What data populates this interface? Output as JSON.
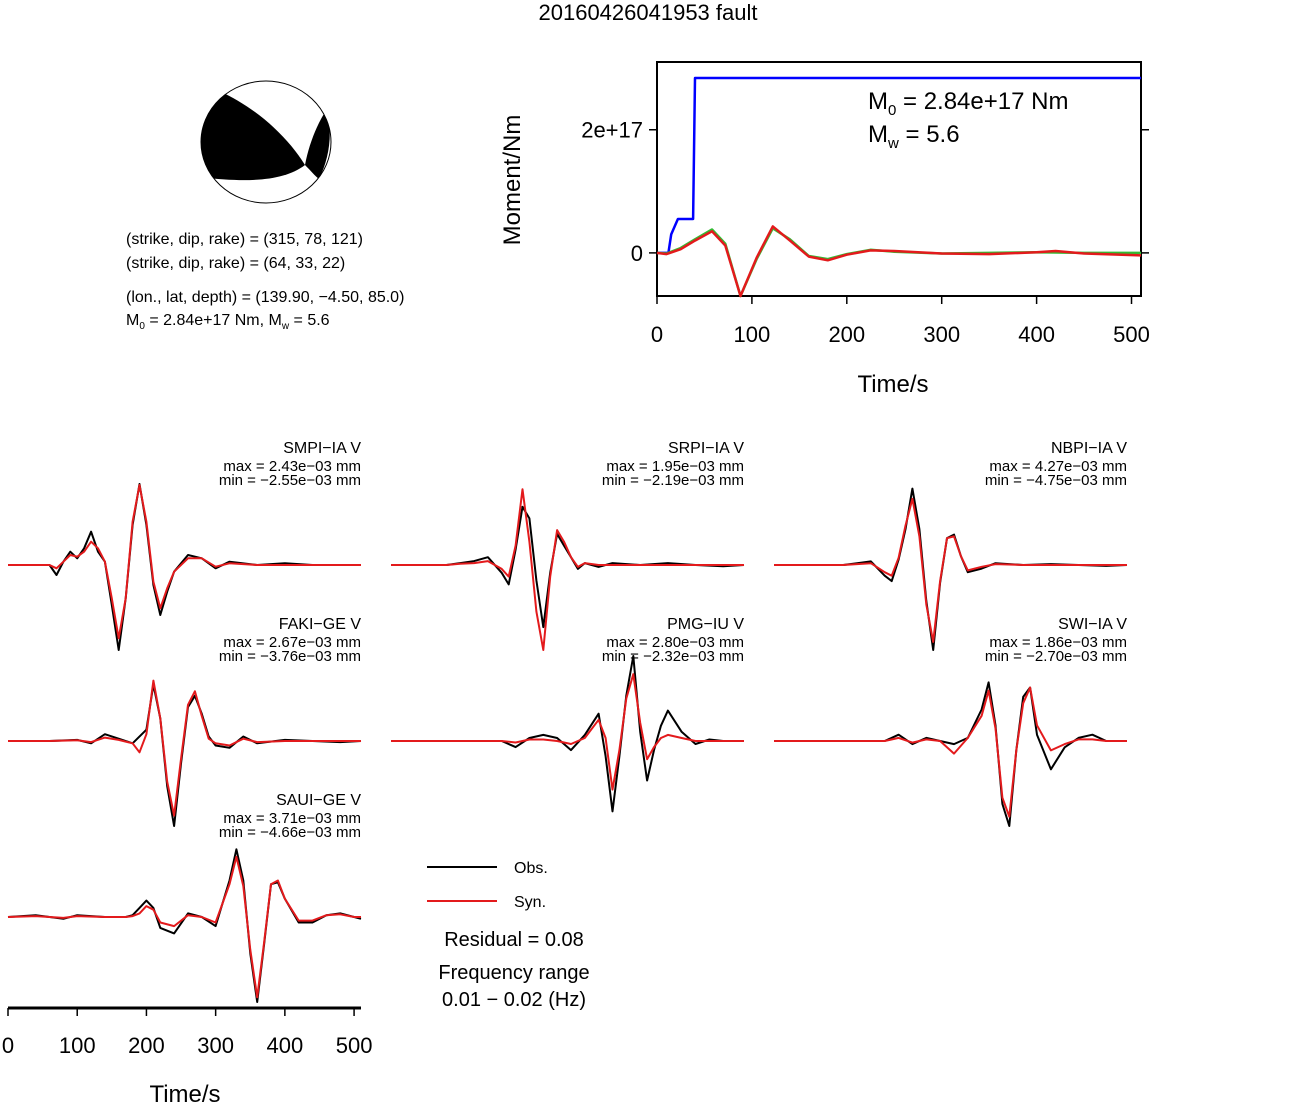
{
  "title": "20160426041953 fault",
  "mechanism": {
    "line1": "(strike, dip, rake) = (315, 78, 121)",
    "line2": "(strike, dip, rake) = (64, 33, 22)",
    "line3": "(lon., lat, depth) = (139.90, −4.50, 85.0)",
    "line4_m0": "M",
    "line4_m0_sub": "0",
    "line4_mid": " = 2.84e+17 Nm, M",
    "line4_mw_sub": "w",
    "line4_end": " = 5.6"
  },
  "moment_panel": {
    "ylabel": "Moment/Nm",
    "xlabel": "Time/s",
    "m0_label": "M",
    "m0_sub": "0",
    "m0_value": " = 2.84e+17 Nm",
    "mw_label": "M",
    "mw_sub": "w",
    "mw_value": " = 5.6",
    "ytick_labels": [
      "0",
      "2e+17"
    ],
    "xtick_labels": [
      "0",
      "100",
      "200",
      "300",
      "400",
      "500"
    ]
  },
  "waveform_axis": {
    "xlabel": "Time/s",
    "xtick_labels": [
      "0",
      "100",
      "200",
      "300",
      "400",
      "500"
    ]
  },
  "legend": {
    "obs": "Obs.",
    "syn": "Syn.",
    "residual": "Residual = 0.08",
    "freq_title": "Frequency range",
    "freq_value": "0.01 − 0.02 (Hz)"
  },
  "colors": {
    "observed": "#000000",
    "synthetic": "#e31a1c",
    "cumulative_moment": "#0000ff",
    "moment_rate_green": "#33bb33"
  },
  "chart_data": [
    {
      "type": "line",
      "panel": "moment",
      "xlabel": "Time/s",
      "ylabel": "Moment/Nm",
      "xlim": [
        0,
        510
      ],
      "ylim": [
        -7e+16,
        3.1e+17
      ],
      "series": [
        {
          "name": "cumulative",
          "x": [
            0,
            12,
            15,
            22,
            38,
            40,
            510
          ],
          "y": [
            0,
            0,
            3e+16,
            5.5e+16,
            5.5e+16,
            2.84e+17,
            2.84e+17
          ]
        },
        {
          "name": "rate_green",
          "x": [
            0,
            10,
            25,
            40,
            58,
            72,
            88,
            105,
            122,
            140,
            160,
            180,
            200,
            225,
            250,
            300,
            350,
            400,
            450,
            510
          ],
          "y": [
            0,
            -1000000000000000.0,
            8000000000000000.0,
            2.2e+16,
            3.8e+16,
            1.5e+16,
            -7e+16,
            -1e+16,
            4e+16,
            2.2e+16,
            -5000000000000000.0,
            -1e+16,
            -2000000000000000.0,
            5000000000000000.0,
            2000000000000000.0,
            -1000000000000000.0,
            0,
            1000000000000000.0,
            0,
            0
          ]
        },
        {
          "name": "rate_red",
          "x": [
            0,
            10,
            25,
            40,
            58,
            72,
            88,
            105,
            122,
            140,
            160,
            180,
            200,
            225,
            250,
            300,
            350,
            400,
            420,
            450,
            510
          ],
          "y": [
            0,
            -2000000000000000.0,
            6000000000000000.0,
            2e+16,
            3.5e+16,
            1.2e+16,
            -7e+16,
            -8000000000000000.0,
            4.3e+16,
            2e+16,
            -6000000000000000.0,
            -1.2e+16,
            -3000000000000000.0,
            4000000000000000.0,
            3000000000000000.0,
            -1000000000000000.0,
            -2000000000000000.0,
            1000000000000000.0,
            3000000000000000.0,
            -1000000000000000.0,
            -4000000000000000.0
          ]
        }
      ]
    },
    {
      "type": "line",
      "panel": "waveforms",
      "xlabel": "Time/s",
      "xlim": [
        0,
        510
      ],
      "stations": [
        {
          "name": "SMPI−IA V",
          "max": "max = 2.43e−03 mm",
          "min": "min = −2.55e−03 mm",
          "obs": {
            "x": [
              0,
              60,
              70,
              80,
              90,
              100,
              110,
              120,
              130,
              140,
              150,
              160,
              170,
              180,
              190,
              200,
              210,
              220,
              230,
              240,
              260,
              280,
              300,
              320,
              360,
              400,
              440,
              510
            ],
            "y": [
              0,
              0,
              -0.3,
              0.1,
              0.4,
              0.2,
              0.5,
              1.0,
              0.4,
              0.1,
              -1.2,
              -2.55,
              -1.0,
              1.2,
              2.43,
              1.2,
              -0.6,
              -1.5,
              -0.8,
              -0.2,
              0.3,
              0.2,
              -0.1,
              0.1,
              0,
              0.05,
              0,
              0
            ]
          },
          "syn": {
            "x": [
              0,
              60,
              70,
              80,
              90,
              100,
              110,
              120,
              130,
              140,
              150,
              160,
              170,
              180,
              190,
              200,
              210,
              220,
              230,
              240,
              260,
              280,
              300,
              320,
              360,
              400,
              440,
              510
            ],
            "y": [
              0,
              0,
              -0.1,
              0.1,
              0.3,
              0.25,
              0.4,
              0.7,
              0.5,
              0.1,
              -1.0,
              -2.2,
              -1.0,
              1.3,
              2.4,
              1.3,
              -0.5,
              -1.3,
              -0.7,
              -0.2,
              0.2,
              0.2,
              -0.05,
              0.05,
              0,
              0,
              0,
              0
            ]
          }
        },
        {
          "name": "SRPI−IA V",
          "max": "max = 1.95e−03 mm",
          "min": "min = −2.19e−03 mm",
          "obs": {
            "x": [
              0,
              80,
              100,
              120,
              140,
              160,
              170,
              180,
              190,
              200,
              210,
              220,
              230,
              240,
              250,
              260,
              270,
              280,
              300,
              320,
              360,
              400,
              440,
              480,
              510
            ],
            "y": [
              0,
              0,
              0.05,
              0.1,
              0.2,
              -0.2,
              -0.5,
              0.4,
              1.5,
              1.2,
              -0.4,
              -1.6,
              -0.2,
              0.8,
              0.5,
              0.2,
              -0.1,
              0.05,
              -0.05,
              0.05,
              0,
              0.05,
              0,
              -0.03,
              0
            ]
          },
          "syn": {
            "x": [
              0,
              80,
              100,
              120,
              140,
              160,
              170,
              180,
              190,
              200,
              210,
              220,
              230,
              240,
              250,
              260,
              270,
              280,
              300,
              320,
              360,
              400,
              440,
              480,
              510
            ],
            "y": [
              0,
              0,
              0.03,
              0.05,
              0.1,
              -0.1,
              -0.3,
              0.5,
              1.95,
              0.6,
              -1.2,
              -2.19,
              -0.3,
              0.9,
              0.6,
              0.2,
              -0.05,
              0.05,
              0,
              0,
              0,
              0,
              0,
              0,
              0
            ]
          }
        },
        {
          "name": "NBPI−IA V",
          "max": "max = 4.27e−03 mm",
          "min": "min = −4.75e−03 mm",
          "obs": {
            "x": [
              0,
              100,
              120,
              140,
              160,
              170,
              180,
              190,
              200,
              210,
              220,
              230,
              240,
              250,
              260,
              270,
              280,
              300,
              320,
              360,
              400,
              440,
              480,
              510
            ],
            "y": [
              0,
              0,
              0.1,
              0.2,
              -0.6,
              -0.9,
              0.3,
              2.0,
              4.27,
              2.0,
              -2.0,
              -4.75,
              -1.0,
              1.5,
              1.7,
              0.5,
              -0.4,
              -0.2,
              0.1,
              0,
              0.05,
              0,
              -0.05,
              0
            ]
          },
          "syn": {
            "x": [
              0,
              100,
              120,
              140,
              160,
              170,
              180,
              190,
              200,
              210,
              220,
              230,
              240,
              250,
              260,
              270,
              280,
              300,
              320,
              360,
              400,
              440,
              480,
              510
            ],
            "y": [
              0,
              0,
              0.05,
              0.1,
              -0.4,
              -0.6,
              0.4,
              2.2,
              3.7,
              1.6,
              -2.2,
              -4.3,
              -0.9,
              1.5,
              1.6,
              0.5,
              -0.3,
              -0.1,
              0.05,
              0,
              0,
              0,
              0,
              0
            ]
          }
        },
        {
          "name": "FAKI−GE V",
          "max": "max = 2.67e−03 mm",
          "min": "min = −3.76e−03 mm",
          "obs": {
            "x": [
              0,
              60,
              100,
              120,
              140,
              160,
              180,
              200,
              210,
              220,
              230,
              240,
              250,
              260,
              270,
              280,
              290,
              300,
              320,
              340,
              360,
              400,
              440,
              480,
              510
            ],
            "y": [
              0,
              0,
              0.05,
              -0.1,
              0.3,
              0.1,
              -0.1,
              0.5,
              2.5,
              1.0,
              -2.0,
              -3.76,
              -1.0,
              1.5,
              2.0,
              1.2,
              0.2,
              -0.2,
              -0.3,
              0.2,
              -0.1,
              0.05,
              0,
              -0.05,
              0
            ]
          },
          "syn": {
            "x": [
              0,
              60,
              100,
              120,
              140,
              160,
              180,
              190,
              200,
              210,
              220,
              230,
              240,
              250,
              260,
              270,
              280,
              290,
              300,
              320,
              340,
              360,
              400,
              440,
              480,
              510
            ],
            "y": [
              0,
              0,
              0.03,
              -0.05,
              0.15,
              0.05,
              -0.1,
              -0.5,
              0.3,
              2.67,
              1.0,
              -1.8,
              -3.3,
              -0.8,
              1.6,
              2.2,
              1.1,
              0.1,
              -0.1,
              -0.2,
              0.1,
              -0.05,
              0,
              0,
              0,
              0
            ]
          }
        },
        {
          "name": "PMG−IU V",
          "max": "max = 2.80e−03 mm",
          "min": "min = −2.32e−03 mm",
          "obs": {
            "x": [
              0,
              100,
              160,
              180,
              200,
              220,
              240,
              260,
              280,
              300,
              310,
              320,
              330,
              340,
              350,
              360,
              370,
              380,
              390,
              400,
              420,
              440,
              460,
              480,
              510
            ],
            "y": [
              0,
              0,
              0,
              -0.2,
              0.1,
              0.2,
              0.1,
              -0.3,
              0.2,
              0.9,
              -0.5,
              -2.32,
              -0.5,
              1.5,
              2.8,
              0.3,
              -1.3,
              -0.3,
              0.5,
              1.0,
              0.3,
              -0.1,
              0.05,
              0,
              0
            ]
          },
          "syn": {
            "x": [
              0,
              100,
              160,
              180,
              200,
              220,
              240,
              260,
              280,
              300,
              310,
              320,
              330,
              340,
              350,
              360,
              370,
              380,
              390,
              400,
              420,
              440,
              460,
              480,
              510
            ],
            "y": [
              0,
              0,
              0,
              -0.05,
              0.05,
              0.05,
              0,
              -0.1,
              0.1,
              0.7,
              0.1,
              -1.6,
              -0.3,
              1.4,
              2.2,
              0.6,
              -0.6,
              -0.2,
              0.1,
              0.2,
              0.1,
              0,
              0,
              0,
              0
            ]
          }
        },
        {
          "name": "SWI−IA V",
          "max": "max = 1.86e−03 mm",
          "min": "min = −2.70e−03 mm",
          "obs": {
            "x": [
              0,
              100,
              160,
              180,
              200,
              220,
              240,
              260,
              280,
              300,
              310,
              320,
              330,
              340,
              350,
              360,
              370,
              380,
              400,
              420,
              440,
              460,
              480,
              510
            ],
            "y": [
              0,
              0,
              0,
              0.2,
              -0.1,
              0.1,
              0,
              -0.1,
              0.1,
              1.0,
              1.86,
              0.5,
              -2.0,
              -2.7,
              -0.3,
              1.4,
              1.7,
              0.2,
              -0.9,
              -0.2,
              0.1,
              0.2,
              0,
              0
            ]
          },
          "syn": {
            "x": [
              0,
              100,
              160,
              180,
              200,
              220,
              240,
              260,
              280,
              300,
              310,
              320,
              330,
              340,
              350,
              360,
              370,
              380,
              400,
              420,
              440,
              460,
              480,
              510
            ],
            "y": [
              0,
              0,
              0,
              0.1,
              -0.05,
              0.05,
              0,
              -0.4,
              0.1,
              0.8,
              1.6,
              0.4,
              -1.8,
              -2.4,
              -0.3,
              1.2,
              1.7,
              0.5,
              -0.3,
              -0.1,
              0.05,
              0.05,
              0,
              0
            ]
          }
        },
        {
          "name": "SAUI−GE V",
          "max": "max = 3.71e−03 mm",
          "min": "min = −4.66e−03 mm",
          "obs": {
            "x": [
              0,
              40,
              80,
              100,
              140,
              170,
              180,
              190,
              200,
              210,
              220,
              240,
              260,
              280,
              300,
              320,
              330,
              340,
              350,
              360,
              370,
              380,
              390,
              400,
              420,
              440,
              460,
              480,
              500,
              510
            ],
            "y": [
              0,
              0.1,
              -0.1,
              0.1,
              0,
              0,
              0.1,
              0.5,
              0.9,
              0.5,
              -0.6,
              -0.9,
              0.2,
              0,
              -0.5,
              2.0,
              3.71,
              2.0,
              -2.0,
              -4.66,
              -1.5,
              1.8,
              1.9,
              1.0,
              -0.3,
              -0.3,
              0.1,
              0.2,
              0,
              -0.1
            ]
          },
          "syn": {
            "x": [
              0,
              40,
              80,
              100,
              140,
              170,
              180,
              190,
              200,
              210,
              220,
              240,
              260,
              280,
              300,
              320,
              330,
              340,
              350,
              360,
              370,
              380,
              390,
              400,
              420,
              440,
              460,
              480,
              500,
              510
            ],
            "y": [
              0,
              0.05,
              -0.05,
              0.05,
              0,
              0,
              0.05,
              0.2,
              0.6,
              0.4,
              -0.3,
              -0.5,
              0.1,
              0,
              -0.3,
              1.8,
              3.3,
              1.7,
              -1.8,
              -4.4,
              -1.4,
              1.8,
              2.0,
              1.0,
              -0.2,
              -0.2,
              0.1,
              0.15,
              0,
              0
            ]
          }
        }
      ]
    }
  ]
}
